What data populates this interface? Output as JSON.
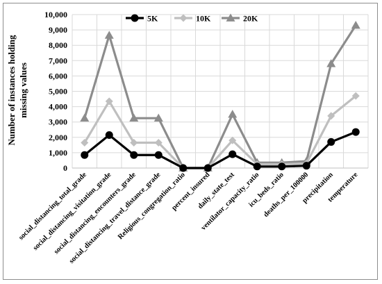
{
  "chart_data": {
    "type": "line",
    "title": "",
    "xlabel": "",
    "ylabel_lines": [
      "Number of instances holding",
      "missing values"
    ],
    "ylim": [
      0,
      10000
    ],
    "yticks": [
      0,
      1000,
      2000,
      3000,
      4000,
      5000,
      6000,
      7000,
      8000,
      9000,
      10000
    ],
    "ytick_labels": [
      "0",
      "1,000",
      "2,000",
      "3,000",
      "4,000",
      "5,000",
      "6,000",
      "7,000",
      "8,000",
      "9,000",
      "10,000"
    ],
    "grid": true,
    "legend_position": "top",
    "categories": [
      "social_distancing_total_grade",
      "social_distancing_visitation_grade",
      "social_distancing_encounters_grade",
      "social_distancing_travel_distance_grade",
      "Religious_congregation_ratio",
      "percent_insured",
      "daily_state_test",
      "ventilator_capacity_ratio",
      "icu_beds_ratio",
      "deaths_per_100000",
      "precipitation",
      "temperature"
    ],
    "series": [
      {
        "name": "5K",
        "color": "#000000",
        "marker": "circle",
        "values": [
          850,
          2150,
          850,
          850,
          0,
          0,
          900,
          100,
          100,
          150,
          1700,
          2350
        ]
      },
      {
        "name": "10K",
        "color": "#bfbfbf",
        "marker": "diamond",
        "values": [
          1650,
          4350,
          1650,
          1650,
          0,
          0,
          1800,
          250,
          250,
          300,
          3400,
          4700
        ]
      },
      {
        "name": "20K",
        "color": "#8c8c8c",
        "marker": "triangle",
        "values": [
          3250,
          8650,
          3250,
          3250,
          0,
          0,
          3500,
          350,
          350,
          450,
          6800,
          9300
        ]
      }
    ]
  }
}
